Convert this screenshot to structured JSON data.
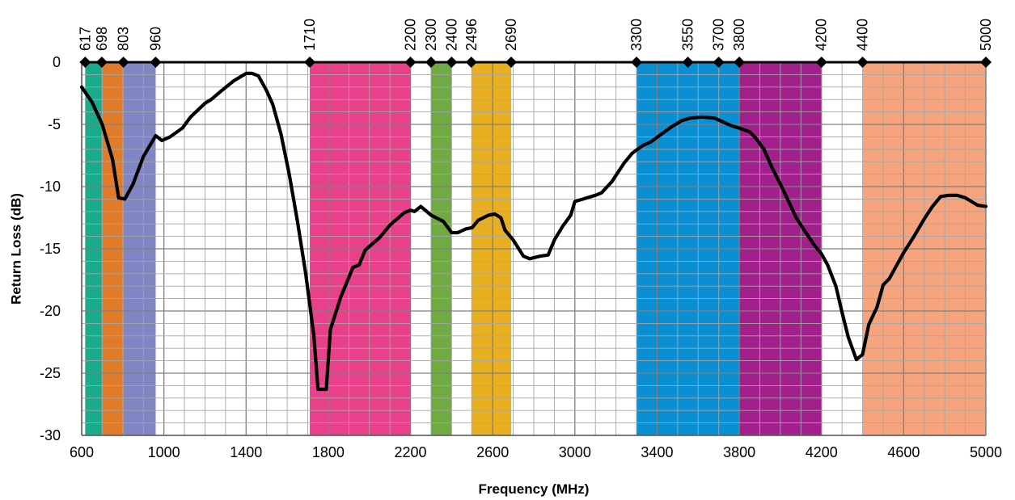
{
  "chart_data": {
    "type": "line",
    "title": "",
    "xlabel": "Frequency (MHz)",
    "ylabel": "Return Loss (dB)",
    "xlim": [
      600,
      5000
    ],
    "ylim": [
      -30,
      0
    ],
    "grid": true,
    "x_major_ticks": [
      600,
      1000,
      1400,
      1800,
      2200,
      2600,
      3000,
      3400,
      3800,
      4200,
      4600,
      5000
    ],
    "x_minor_step": 100,
    "y_major_ticks": [
      0,
      -5,
      -10,
      -15,
      -20,
      -25,
      -30
    ],
    "y_minor_step": 1,
    "band_markers": [
      617,
      698,
      803,
      960,
      1710,
      2200,
      2300,
      2400,
      2496,
      2690,
      3300,
      3550,
      3700,
      3800,
      4200,
      4400,
      5000
    ],
    "bands": [
      {
        "from": 617,
        "to": 698,
        "color": "#1aaa8c"
      },
      {
        "from": 698,
        "to": 803,
        "color": "#e07b2a"
      },
      {
        "from": 803,
        "to": 960,
        "color": "#8085c4"
      },
      {
        "from": 1710,
        "to": 2200,
        "color": "#e8408a"
      },
      {
        "from": 2300,
        "to": 2400,
        "color": "#70aa42"
      },
      {
        "from": 2496,
        "to": 2690,
        "color": "#e8b021"
      },
      {
        "from": 3300,
        "to": 3800,
        "color": "#0a8fd3"
      },
      {
        "from": 3800,
        "to": 4200,
        "color": "#a2208c"
      },
      {
        "from": 4400,
        "to": 5000,
        "color": "#f5a47d"
      }
    ],
    "series": [
      {
        "color": "#000000",
        "points": [
          [
            600,
            -2.0
          ],
          [
            650,
            -3.2
          ],
          [
            700,
            -5.0
          ],
          [
            750,
            -7.8
          ],
          [
            780,
            -10.9
          ],
          [
            810,
            -11.0
          ],
          [
            850,
            -9.8
          ],
          [
            900,
            -7.6
          ],
          [
            960,
            -5.9
          ],
          [
            990,
            -6.3
          ],
          [
            1030,
            -6.0
          ],
          [
            1090,
            -5.3
          ],
          [
            1130,
            -4.4
          ],
          [
            1200,
            -3.3
          ],
          [
            1230,
            -3.0
          ],
          [
            1280,
            -2.3
          ],
          [
            1340,
            -1.5
          ],
          [
            1400,
            -0.9
          ],
          [
            1430,
            -0.9
          ],
          [
            1460,
            -1.1
          ],
          [
            1500,
            -2.3
          ],
          [
            1530,
            -3.4
          ],
          [
            1570,
            -5.8
          ],
          [
            1610,
            -9.0
          ],
          [
            1650,
            -12.8
          ],
          [
            1690,
            -17.0
          ],
          [
            1730,
            -22.0
          ],
          [
            1750,
            -26.3
          ],
          [
            1790,
            -26.3
          ],
          [
            1810,
            -21.5
          ],
          [
            1860,
            -18.9
          ],
          [
            1920,
            -16.5
          ],
          [
            1950,
            -16.3
          ],
          [
            1980,
            -15.1
          ],
          [
            2050,
            -14.1
          ],
          [
            2100,
            -13.1
          ],
          [
            2170,
            -12.1
          ],
          [
            2200,
            -11.9
          ],
          [
            2220,
            -12.0
          ],
          [
            2250,
            -11.6
          ],
          [
            2300,
            -12.3
          ],
          [
            2360,
            -12.8
          ],
          [
            2400,
            -13.7
          ],
          [
            2430,
            -13.7
          ],
          [
            2470,
            -13.4
          ],
          [
            2500,
            -13.3
          ],
          [
            2530,
            -12.7
          ],
          [
            2580,
            -12.3
          ],
          [
            2610,
            -12.2
          ],
          [
            2640,
            -12.5
          ],
          [
            2660,
            -13.5
          ],
          [
            2700,
            -14.3
          ],
          [
            2750,
            -15.6
          ],
          [
            2780,
            -15.8
          ],
          [
            2830,
            -15.6
          ],
          [
            2870,
            -15.5
          ],
          [
            2900,
            -14.3
          ],
          [
            2940,
            -13.2
          ],
          [
            2980,
            -12.3
          ],
          [
            3000,
            -11.2
          ],
          [
            3040,
            -11.0
          ],
          [
            3100,
            -10.7
          ],
          [
            3130,
            -10.5
          ],
          [
            3180,
            -9.6
          ],
          [
            3240,
            -8.1
          ],
          [
            3280,
            -7.3
          ],
          [
            3330,
            -6.7
          ],
          [
            3370,
            -6.4
          ],
          [
            3420,
            -5.8
          ],
          [
            3470,
            -5.2
          ],
          [
            3520,
            -4.7
          ],
          [
            3560,
            -4.5
          ],
          [
            3620,
            -4.4
          ],
          [
            3680,
            -4.5
          ],
          [
            3720,
            -4.8
          ],
          [
            3760,
            -5.1
          ],
          [
            3800,
            -5.3
          ],
          [
            3850,
            -5.6
          ],
          [
            3880,
            -6.1
          ],
          [
            3920,
            -7.0
          ],
          [
            3960,
            -8.5
          ],
          [
            4000,
            -9.8
          ],
          [
            4040,
            -11.2
          ],
          [
            4080,
            -12.6
          ],
          [
            4120,
            -13.6
          ],
          [
            4160,
            -14.6
          ],
          [
            4200,
            -15.4
          ],
          [
            4230,
            -16.3
          ],
          [
            4270,
            -18.0
          ],
          [
            4300,
            -20.1
          ],
          [
            4330,
            -22.1
          ],
          [
            4370,
            -23.9
          ],
          [
            4400,
            -23.5
          ],
          [
            4430,
            -21.1
          ],
          [
            4470,
            -19.7
          ],
          [
            4500,
            -17.9
          ],
          [
            4530,
            -17.4
          ],
          [
            4560,
            -16.5
          ],
          [
            4600,
            -15.3
          ],
          [
            4650,
            -14.0
          ],
          [
            4700,
            -12.6
          ],
          [
            4740,
            -11.6
          ],
          [
            4780,
            -10.8
          ],
          [
            4820,
            -10.7
          ],
          [
            4860,
            -10.7
          ],
          [
            4900,
            -10.9
          ],
          [
            4930,
            -11.2
          ],
          [
            4960,
            -11.5
          ],
          [
            5000,
            -11.6
          ]
        ]
      }
    ]
  }
}
